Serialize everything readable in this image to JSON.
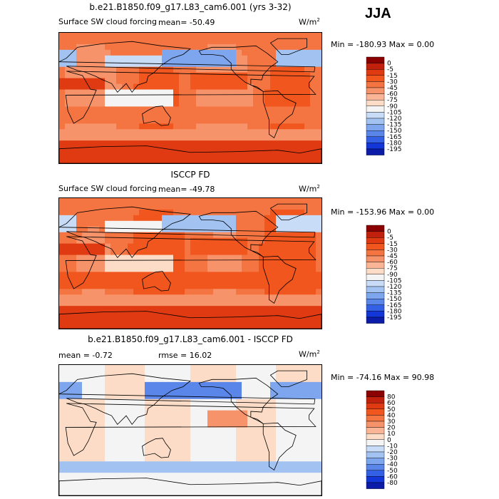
{
  "season": "JJA",
  "units": "W/m",
  "units_sup": "2",
  "chart_data": [
    {
      "type": "heatmap",
      "title": "b.e21.B1850.f09_g17.L83_cam6.001 (yrs 3-32)",
      "subtitle": "Surface SW cloud forcing",
      "mean_text": "mean= -50.49",
      "minmax_text": "Min = -180.93 Max =    0.00",
      "min": -180.93,
      "max": 0.0,
      "mean": -50.49,
      "levels": [
        "0",
        "-5",
        "-15",
        "-30",
        "-45",
        "-60",
        "-75",
        "-90",
        "-105",
        "-120",
        "-135",
        "-150",
        "-165",
        "-180",
        "-195"
      ],
      "colors": [
        "#8b0000",
        "#c0200c",
        "#e03a12",
        "#f0561d",
        "#f47542",
        "#f7936a",
        "#fab596",
        "#fcdcc6",
        "#f4f4f4",
        "#c8dcf7",
        "#a2c3f2",
        "#7ea6ee",
        "#5a86ea",
        "#3460e6",
        "#1236d8",
        "#0a1ca8"
      ]
    },
    {
      "type": "heatmap",
      "title": "ISCCP FD",
      "subtitle": "Surface SW cloud forcing",
      "mean_text": "mean= -49.78",
      "minmax_text": "Min = -153.96 Max =    0.00",
      "min": -153.96,
      "max": 0.0,
      "mean": -49.78,
      "levels": [
        "0",
        "-5",
        "-15",
        "-30",
        "-45",
        "-60",
        "-75",
        "-90",
        "-105",
        "-120",
        "-135",
        "-150",
        "-165",
        "-180",
        "-195"
      ],
      "colors": [
        "#8b0000",
        "#c0200c",
        "#e03a12",
        "#f0561d",
        "#f47542",
        "#f7936a",
        "#fab596",
        "#fcdcc6",
        "#f4f4f4",
        "#c8dcf7",
        "#a2c3f2",
        "#7ea6ee",
        "#5a86ea",
        "#3460e6",
        "#1236d8",
        "#0a1ca8"
      ]
    },
    {
      "type": "heatmap",
      "title": "b.e21.B1850.f09_g17.L83_cam6.001 - ISCCP FD",
      "mean_text": "mean =   -0.72",
      "rmse_text": "rmse =   16.02",
      "minmax_text": "Min = -74.16 Max =  90.98",
      "min": -74.16,
      "max": 90.98,
      "mean": -0.72,
      "rmse": 16.02,
      "levels": [
        "80",
        "60",
        "50",
        "40",
        "30",
        "20",
        "10",
        "0",
        "-10",
        "-20",
        "-30",
        "-40",
        "-50",
        "-60",
        "-80"
      ],
      "colors": [
        "#8b0000",
        "#c0200c",
        "#e03a12",
        "#f0561d",
        "#f47542",
        "#f7936a",
        "#fab596",
        "#fcdcc6",
        "#f4f4f4",
        "#c8dcf7",
        "#a2c3f2",
        "#7ea6ee",
        "#5a86ea",
        "#3460e6",
        "#1236d8",
        "#0a1ca8"
      ]
    }
  ]
}
